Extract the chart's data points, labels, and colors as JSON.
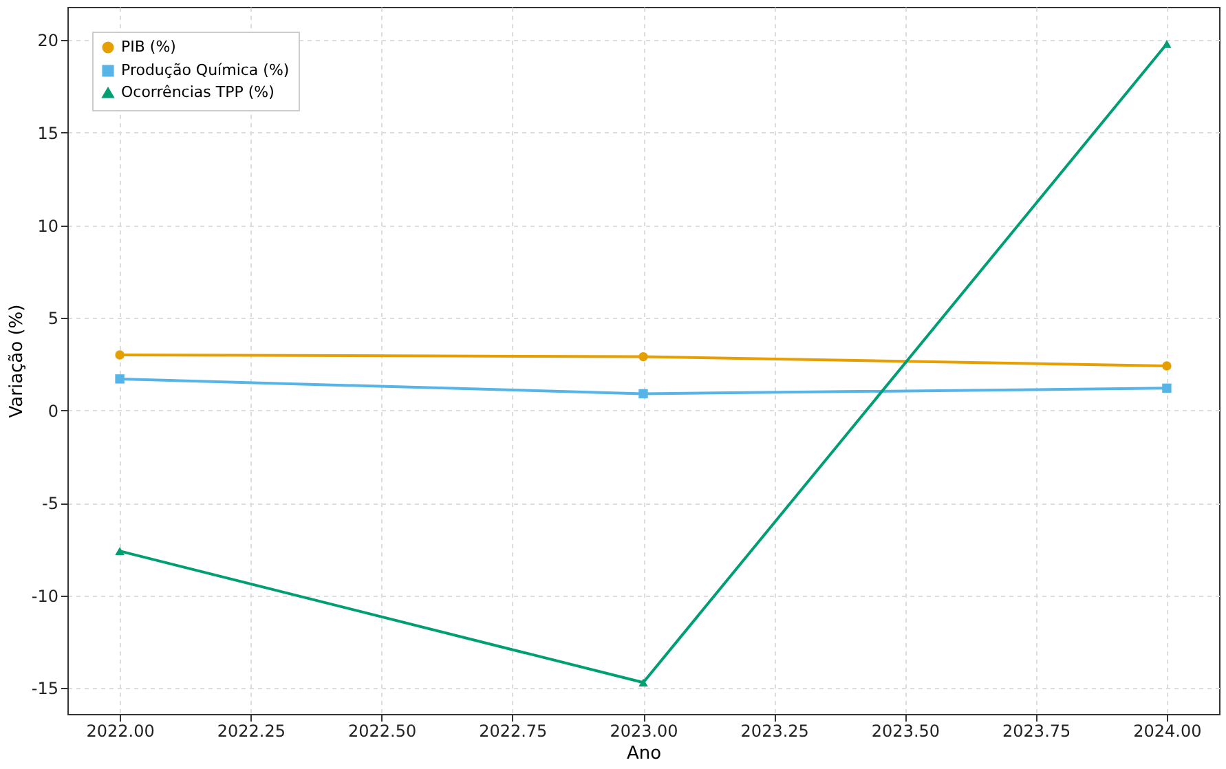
{
  "chart_data": {
    "type": "line",
    "xlabel": "Ano",
    "ylabel": "Variação (%)",
    "x": [
      2022,
      2023,
      2024
    ],
    "series": [
      {
        "name": "PIB (%)",
        "color": "#e69f00",
        "marker": "circle",
        "values": [
          3.0,
          2.9,
          2.4
        ]
      },
      {
        "name": "Produção Química (%)",
        "color": "#56b4e9",
        "marker": "square",
        "values": [
          1.7,
          0.9,
          1.2
        ]
      },
      {
        "name": "Ocorrências TPP (%)",
        "color": "#009e73",
        "marker": "triangle",
        "values": [
          -7.6,
          -14.7,
          19.8
        ]
      }
    ],
    "xlim": [
      2021.9,
      2024.1
    ],
    "xticks": [
      {
        "value": 2022,
        "label": "2022.00"
      },
      {
        "value": 2022.25,
        "label": "2022.25"
      },
      {
        "value": 2022.5,
        "label": "2022.50"
      },
      {
        "value": 2022.75,
        "label": "2022.75"
      },
      {
        "value": 2023,
        "label": "2023.00"
      },
      {
        "value": 2023.25,
        "label": "2023.25"
      },
      {
        "value": 2023.5,
        "label": "2023.50"
      },
      {
        "value": 2023.75,
        "label": "2023.75"
      },
      {
        "value": 2024,
        "label": "2024.00"
      }
    ],
    "ylim": [
      -16.4,
      21.8
    ],
    "yticks": [
      -15,
      -10,
      -5,
      0,
      5,
      10,
      15,
      20
    ],
    "grid": true,
    "legend": "top left",
    "line_style": "solid"
  }
}
